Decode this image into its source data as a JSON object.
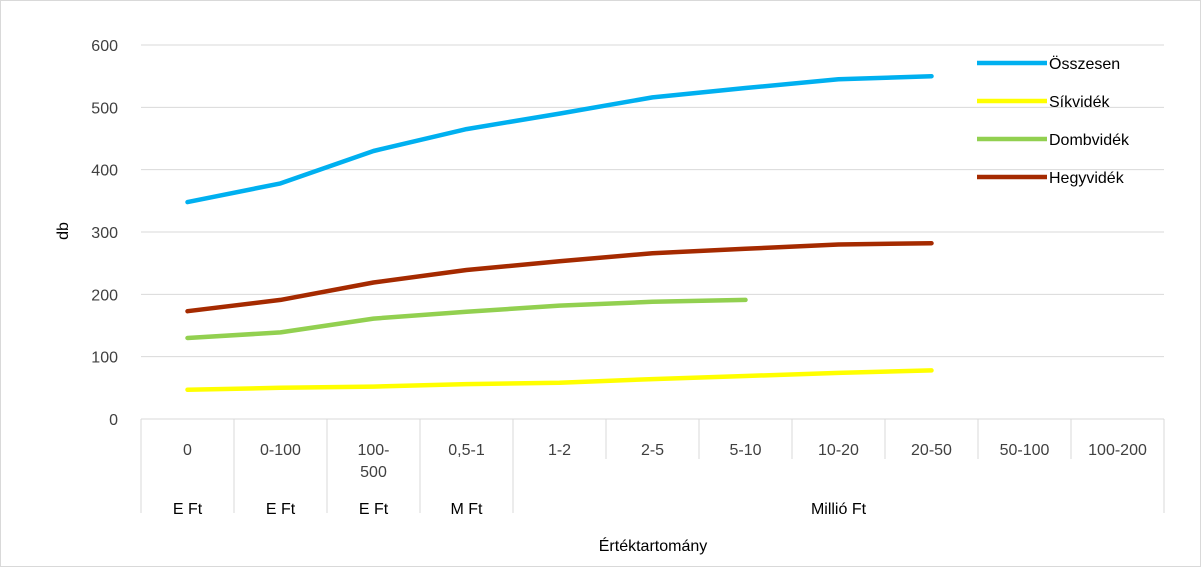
{
  "chart_data": {
    "type": "line",
    "categories": [
      "0",
      "0-100",
      "100-500",
      "0,5-1",
      "1-2",
      "2-5",
      "5-10",
      "10-20",
      "20-50",
      "50-100",
      "100-200"
    ],
    "category_lines": [
      [
        "0"
      ],
      [
        "0-100"
      ],
      [
        "100-",
        "500"
      ],
      [
        "0,5-1"
      ],
      [
        "1-2"
      ],
      [
        "2-5"
      ],
      [
        "5-10"
      ],
      [
        "10-20"
      ],
      [
        "20-50"
      ],
      [
        "50-100"
      ],
      [
        "100-200"
      ]
    ],
    "groups": [
      {
        "label": "E Ft",
        "span": [
          0,
          0
        ]
      },
      {
        "label": "E Ft",
        "span": [
          1,
          1
        ]
      },
      {
        "label": "E Ft",
        "span": [
          2,
          2
        ]
      },
      {
        "label": "M Ft",
        "span": [
          3,
          3
        ]
      },
      {
        "label": "Millió Ft",
        "span": [
          4,
          10
        ]
      }
    ],
    "series": [
      {
        "name": "Összesen",
        "color": "#00b0f0",
        "values": [
          348,
          378,
          430,
          465,
          490,
          516,
          531,
          545,
          550,
          null,
          null
        ]
      },
      {
        "name": "Síkvidék",
        "color": "#ffff00",
        "values": [
          47,
          50,
          52,
          56,
          58,
          64,
          69,
          74,
          78,
          null,
          null
        ]
      },
      {
        "name": "Dombvidék",
        "color": "#92d050",
        "values": [
          130,
          139,
          161,
          172,
          182,
          188,
          191,
          null,
          null,
          null,
          null
        ]
      },
      {
        "name": "Hegyvidék",
        "color": "#a52a00",
        "values": [
          173,
          191,
          219,
          239,
          253,
          266,
          273,
          280,
          282,
          null,
          null
        ]
      }
    ],
    "xlabel": "Értéktartomány",
    "ylabel": "db",
    "ylim": [
      0,
      600
    ],
    "yticks": [
      0,
      100,
      200,
      300,
      400,
      500,
      600
    ],
    "grid": true,
    "legend": "top-right"
  }
}
